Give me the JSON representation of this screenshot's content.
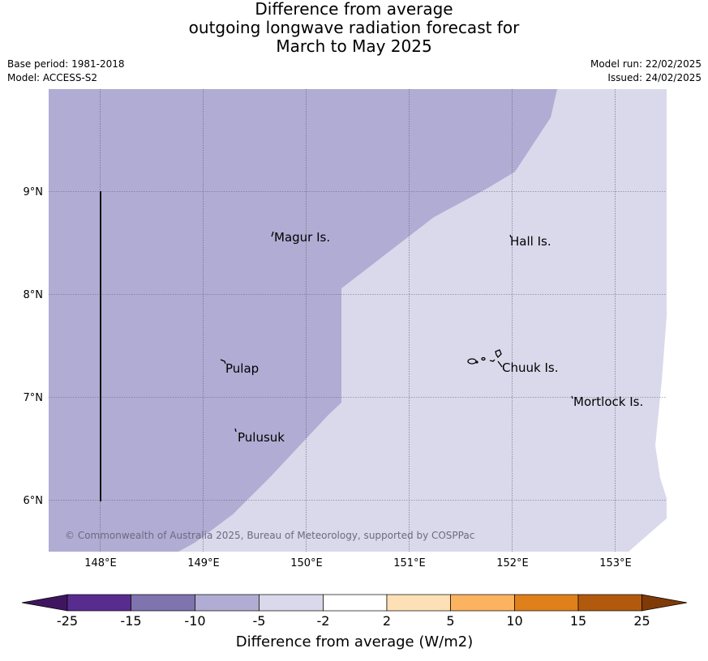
{
  "title": {
    "line1": "Difference from average",
    "line2": "outgoing longwave radiation forecast for",
    "line3": "March to May 2025"
  },
  "meta": {
    "base_period": "Base period: 1981-2018",
    "model": "Model: ACCESS-S2",
    "model_run": "Model run: 22/02/2025",
    "issued": "Issued: 24/02/2025"
  },
  "map": {
    "lon_labels": [
      "148°E",
      "149°E",
      "150°E",
      "151°E",
      "152°E",
      "153°E"
    ],
    "lat_labels": [
      "9°N",
      "8°N",
      "7°N",
      "6°N"
    ],
    "islands": [
      "Magur Is.",
      "Hall Is.",
      "Pulap",
      "Chuuk Is.",
      "Mortlock Is.",
      "Pulusuk"
    ],
    "copyright": "© Commonwealth of Australia 2025, Bureau of Meteorology, supported by COSPPac",
    "region_colors": {
      "-10 to -5": "#b0acd3",
      "-5 to -2": "#d9d9eb"
    }
  },
  "colorbar": {
    "ticks": [
      "-25",
      "-15",
      "-10",
      "-5",
      "-2",
      "2",
      "5",
      "10",
      "15",
      "25"
    ],
    "colors": [
      "#3f1560",
      "#582c8e",
      "#7f74ae",
      "#b0acd3",
      "#d9d9eb",
      "#ffffff",
      "#fde0b5",
      "#fbb35f",
      "#e0801a",
      "#b15a0d",
      "#7f3a08"
    ],
    "label": "Difference from average (W/m2)"
  }
}
